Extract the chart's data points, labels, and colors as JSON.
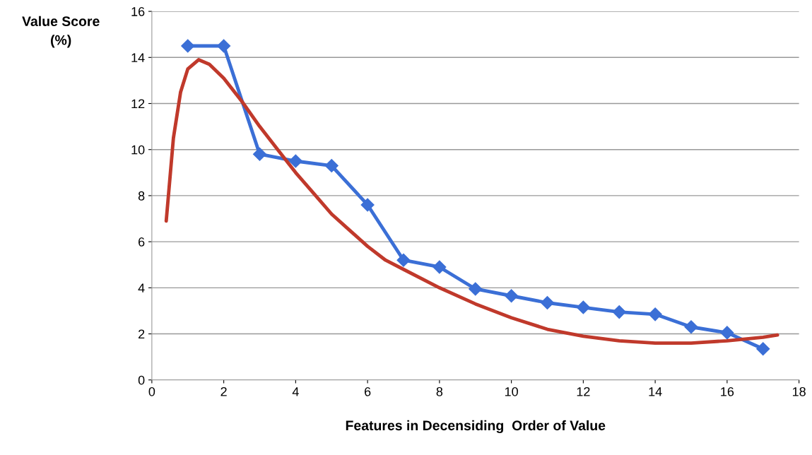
{
  "chart_data": {
    "type": "line",
    "xlabel": "Features in Decensiding  Order of Value",
    "ylabel": "Value Score\n(%)",
    "xlim": [
      0,
      18
    ],
    "xticks": [
      0,
      2,
      4,
      6,
      8,
      10,
      12,
      14,
      16,
      18
    ],
    "ylim": [
      0,
      16
    ],
    "yticks": [
      0,
      2,
      4,
      6,
      8,
      10,
      12,
      14,
      16
    ],
    "grid": "y",
    "legend": false,
    "series": [
      {
        "color": "#3b6fd6",
        "marker": "diamond",
        "x": [
          1,
          2,
          3,
          4,
          5,
          6,
          7,
          8,
          9,
          10,
          11,
          12,
          13,
          14,
          15,
          16,
          17
        ],
        "values": [
          14.5,
          14.5,
          9.8,
          9.5,
          9.3,
          7.6,
          5.2,
          4.9,
          3.95,
          3.65,
          3.35,
          3.15,
          2.95,
          2.85,
          2.3,
          2.05,
          1.35
        ]
      },
      {
        "color": "#c0392b",
        "marker": "none",
        "x": [
          0.4,
          0.6,
          0.8,
          1.0,
          1.3,
          1.6,
          2,
          2.5,
          3,
          3.5,
          4,
          4.5,
          5,
          5.5,
          6,
          6.5,
          7,
          8,
          9,
          10,
          11,
          12,
          13,
          14,
          15,
          16,
          17,
          17.4
        ],
        "values": [
          6.9,
          10.5,
          12.5,
          13.5,
          13.9,
          13.7,
          13.1,
          12.1,
          11.0,
          10.0,
          9.0,
          8.1,
          7.2,
          6.5,
          5.8,
          5.2,
          4.8,
          4.0,
          3.3,
          2.7,
          2.2,
          1.9,
          1.7,
          1.6,
          1.6,
          1.7,
          1.85,
          1.95
        ]
      }
    ]
  }
}
